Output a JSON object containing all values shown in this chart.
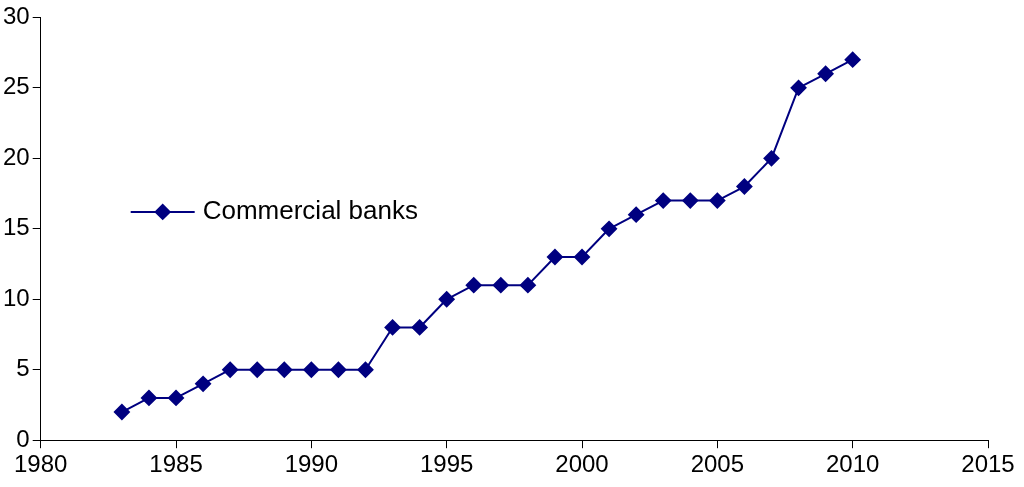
{
  "chart_data": {
    "type": "line",
    "x": [
      1983,
      1984,
      1985,
      1986,
      1987,
      1988,
      1989,
      1990,
      1991,
      1992,
      1993,
      1994,
      1995,
      1996,
      1997,
      1998,
      1999,
      2000,
      2001,
      2002,
      2003,
      2004,
      2005,
      2006,
      2007,
      2008,
      2009,
      2010
    ],
    "series": [
      {
        "name": "Commercial banks",
        "color": "#000080",
        "values": [
          2,
          3,
          3,
          4,
          5,
          5,
          5,
          5,
          5,
          5,
          8,
          8,
          10,
          11,
          11,
          11,
          13,
          13,
          15,
          16,
          17,
          17,
          17,
          18,
          20,
          25,
          26,
          27
        ]
      }
    ],
    "xlim": [
      1980,
      2015
    ],
    "xticks": [
      1980,
      1985,
      1990,
      1995,
      2000,
      2005,
      2010,
      2015
    ],
    "ylim": [
      0,
      30
    ],
    "yticks": [
      0,
      5,
      10,
      15,
      20,
      25,
      30
    ],
    "grid": false,
    "legend": "left",
    "marker": "diamond",
    "line_style": "solid"
  }
}
